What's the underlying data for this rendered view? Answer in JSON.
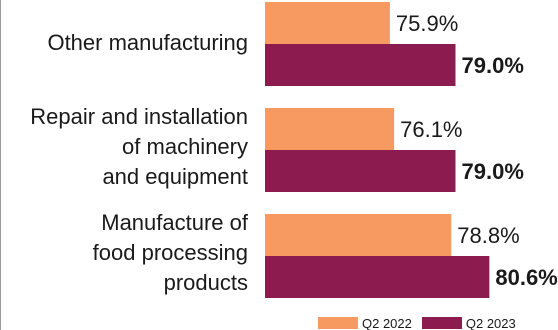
{
  "chart_data": {
    "type": "bar",
    "orientation": "horizontal",
    "categories": [
      "Other manufacturing",
      "Repair and installation\nof machinery\nand equipment",
      "Manufacture of\nfood processing\nproducts"
    ],
    "series": [
      {
        "name": "Q2 2022",
        "color": "#F79A62",
        "values": [
          75.9,
          76.1,
          78.8
        ],
        "labels": [
          "75.9%",
          "76.1%",
          "78.8%"
        ]
      },
      {
        "name": "Q2 2023",
        "color": "#8C1C50",
        "values": [
          79.0,
          79.0,
          80.6
        ],
        "labels": [
          "79.0%",
          "79.0%",
          "80.6%"
        ]
      }
    ],
    "xlim": [
      70,
      82
    ],
    "title": "",
    "xlabel": "",
    "ylabel": "",
    "grid": false,
    "legend": "bottom-right"
  }
}
